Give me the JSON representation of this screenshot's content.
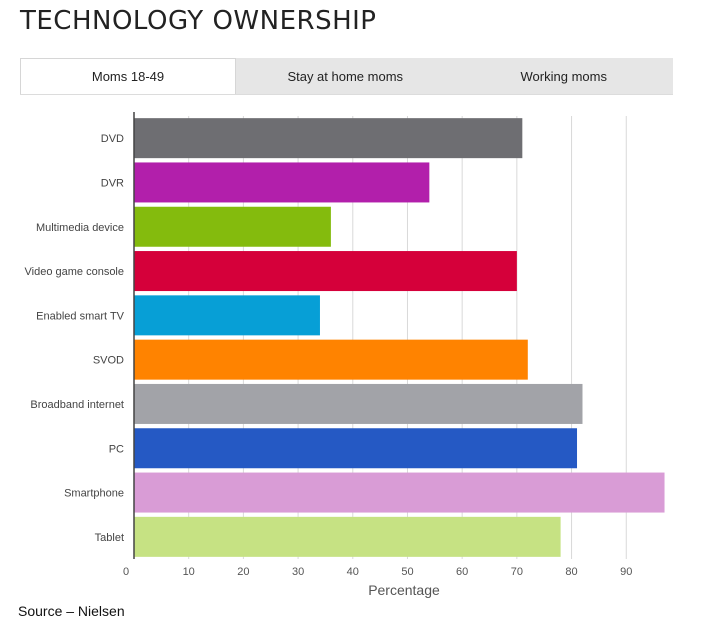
{
  "page": {
    "title": "TECHNOLOGY OWNERSHIP",
    "source": "Source – Nielsen"
  },
  "tabs": [
    {
      "label": "Moms 18-49",
      "active": true
    },
    {
      "label": "Stay at home moms",
      "active": false
    },
    {
      "label": "Working moms",
      "active": false
    }
  ],
  "chart_data": {
    "type": "bar",
    "orientation": "horizontal",
    "categories": [
      "DVD",
      "DVR",
      "Multimedia device",
      "Video game console",
      "Enabled smart TV",
      "SVOD",
      "Broadband internet",
      "PC",
      "Smartphone",
      "Tablet"
    ],
    "values": [
      71,
      54,
      36,
      70,
      34,
      72,
      82,
      81,
      97,
      78
    ],
    "colors": [
      "#6e6e72",
      "#b21fab",
      "#84bb0d",
      "#d5003a",
      "#079fd6",
      "#ff8300",
      "#a2a3a8",
      "#2559c4",
      "#d99cd6",
      "#c6e283"
    ],
    "xlabel": "Percentage",
    "ylabel": "",
    "xlim": [
      0,
      98
    ],
    "xticks": [
      0,
      10,
      20,
      30,
      40,
      50,
      60,
      70,
      80,
      90
    ],
    "grid": true
  }
}
